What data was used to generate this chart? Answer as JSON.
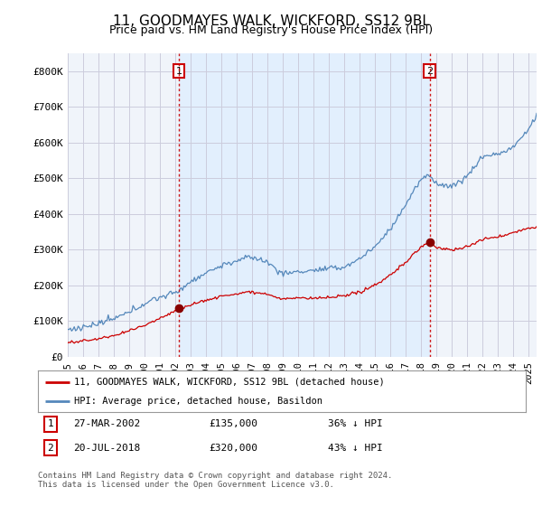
{
  "title": "11, GOODMAYES WALK, WICKFORD, SS12 9BL",
  "subtitle": "Price paid vs. HM Land Registry's House Price Index (HPI)",
  "ylim": [
    0,
    850000
  ],
  "yticks": [
    0,
    100000,
    200000,
    300000,
    400000,
    500000,
    600000,
    700000,
    800000
  ],
  "ytick_labels": [
    "£0",
    "£100K",
    "£200K",
    "£300K",
    "£400K",
    "£500K",
    "£600K",
    "£700K",
    "£800K"
  ],
  "xlim_start": 1995.0,
  "xlim_end": 2025.5,
  "hpi_color": "#5588bb",
  "hpi_fill_color": "#ddeeff",
  "price_color": "#cc0000",
  "vline_color": "#cc0000",
  "sale1_x": 2002.23,
  "sale1_y": 135000,
  "sale2_x": 2018.54,
  "sale2_y": 320000,
  "legend_line1": "11, GOODMAYES WALK, WICKFORD, SS12 9BL (detached house)",
  "legend_line2": "HPI: Average price, detached house, Basildon",
  "annotation1_date": "27-MAR-2002",
  "annotation1_price": "£135,000",
  "annotation1_hpi": "36% ↓ HPI",
  "annotation2_date": "20-JUL-2018",
  "annotation2_price": "£320,000",
  "annotation2_hpi": "43% ↓ HPI",
  "footer": "Contains HM Land Registry data © Crown copyright and database right 2024.\nThis data is licensed under the Open Government Licence v3.0.",
  "bg_color": "#ffffff",
  "chart_bg_color": "#f0f4fa",
  "grid_color": "#ccccdd",
  "title_fontsize": 11,
  "subtitle_fontsize": 9,
  "axis_fontsize": 8
}
